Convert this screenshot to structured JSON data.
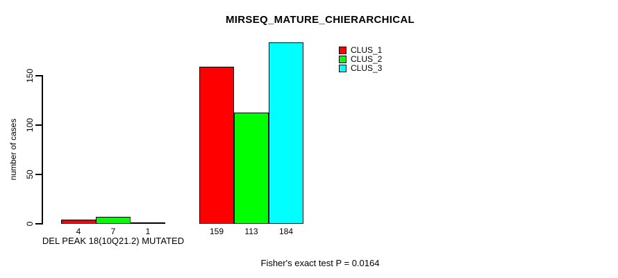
{
  "chart_data": {
    "type": "bar",
    "title": "MIRSEQ_MATURE_CHIERARCHICAL",
    "ylabel": "number of cases",
    "xlabel": "",
    "ylim": [
      0,
      185
    ],
    "yticks": [
      0,
      50,
      100,
      150
    ],
    "grid": false,
    "legend_position": "top-right",
    "legend": [
      {
        "name": "CLUS_1",
        "color": "#ff0000"
      },
      {
        "name": "CLUS_2",
        "color": "#00ff00"
      },
      {
        "name": "CLUS_3",
        "color": "#00ffff"
      }
    ],
    "series_colors": [
      "#ff0000",
      "#00ff00",
      "#00ffff"
    ],
    "groups": [
      {
        "label": "DEL PEAK 18(10Q21.2) MUTATED",
        "values": [
          4,
          7,
          1
        ],
        "bar_labels": [
          "4",
          "7",
          "1"
        ]
      },
      {
        "label": "",
        "values": [
          159,
          113,
          184
        ],
        "bar_labels": [
          "159",
          "113",
          "184"
        ]
      }
    ],
    "footnote": "Fisher's exact test P = 0.0164"
  },
  "colors": {
    "background": "#ffffff",
    "axis": "#000000",
    "text": "#000000",
    "clus_1": "#ff0000",
    "clus_2": "#00ff00",
    "clus_3": "#00ffff"
  }
}
